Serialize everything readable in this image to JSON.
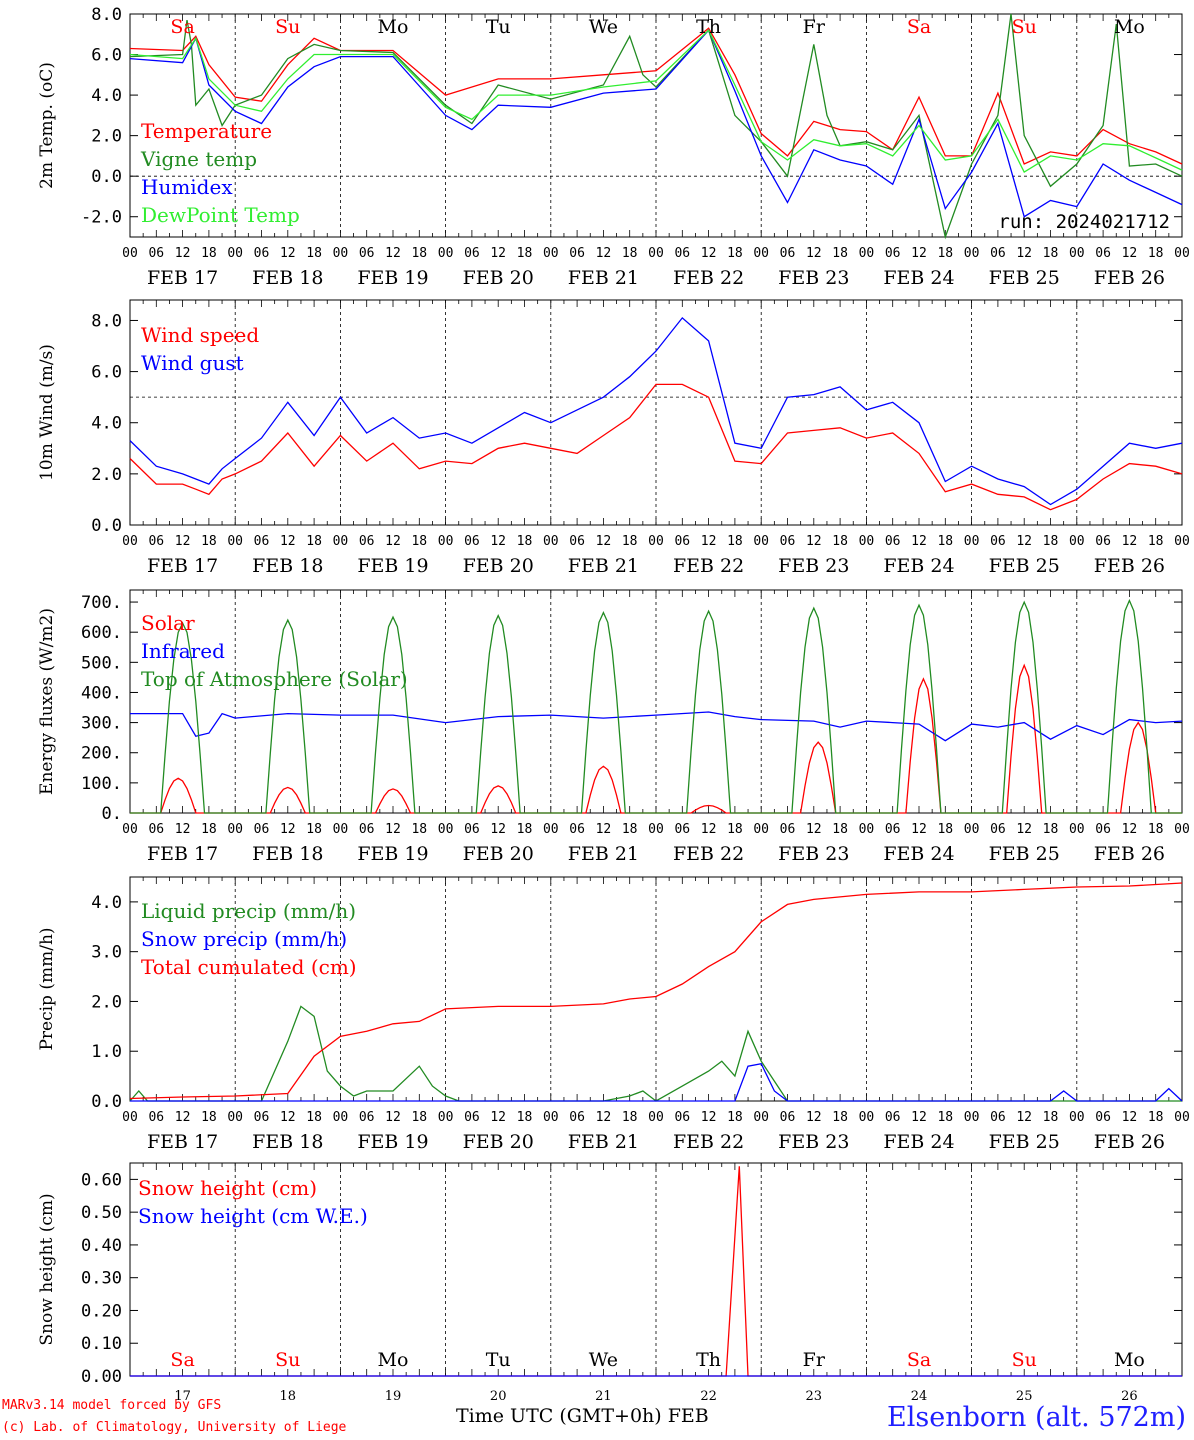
{
  "meta": {
    "model": "MARv3.14 model forced by GFS",
    "credit": "(c) Lab. of Climatology, University of Liege",
    "xaxis_title": "Time UTC (GMT+0h)",
    "month": "FEB",
    "station": "Elsenborn (alt. 572m)",
    "run": "run: 2024021712"
  },
  "days": {
    "dates": [
      "FEB 17",
      "FEB 18",
      "FEB 19",
      "FEB 20",
      "FEB 21",
      "FEB 22",
      "FEB 23",
      "FEB 24",
      "FEB 25",
      "FEB 26"
    ],
    "day_numbers": [
      "17",
      "18",
      "19",
      "20",
      "21",
      "22",
      "23",
      "24",
      "25",
      "26"
    ],
    "weekdays": [
      "Sa",
      "Su",
      "Mo",
      "Tu",
      "We",
      "Th",
      "Fr",
      "Sa",
      "Su",
      "Mo"
    ],
    "weekday_colors": [
      "#ff0000",
      "#ff0000",
      "#000000",
      "#000000",
      "#000000",
      "#000000",
      "#000000",
      "#ff0000",
      "#ff0000",
      "#000000"
    ],
    "hour_ticks": [
      "00",
      "06",
      "12",
      "18"
    ],
    "final_hour": "00"
  },
  "chart_data": [
    {
      "type": "line",
      "ylabel": "2m Temp. (oC)",
      "ylim": [
        -3.0,
        8.0
      ],
      "yticks": [
        "8.0",
        "6.0",
        "4.0",
        "2.0",
        "0.0",
        "-2.0"
      ],
      "ytick_values": [
        8,
        6,
        4,
        2,
        0,
        -2
      ],
      "reference_line": 0,
      "x_unit": "hours since FEB 17 00 UTC",
      "series": [
        {
          "name": "Temperature",
          "color": "#ff0000",
          "x": [
            0,
            12,
            15,
            18,
            24,
            30,
            36,
            42,
            48,
            60,
            72,
            84,
            96,
            108,
            120,
            132,
            138,
            144,
            150,
            156,
            162,
            168,
            174,
            180,
            186,
            192,
            198,
            204,
            210,
            216,
            222,
            228,
            234,
            240
          ],
          "y": [
            6.3,
            6.2,
            6.9,
            5.5,
            3.9,
            3.7,
            5.5,
            6.8,
            6.2,
            6.2,
            4.0,
            4.8,
            4.8,
            5.0,
            5.2,
            7.3,
            5.0,
            2.1,
            1.0,
            2.7,
            2.3,
            2.2,
            1.3,
            3.9,
            1.0,
            1.0,
            4.1,
            0.6,
            1.2,
            1.0,
            2.3,
            1.6,
            1.2,
            0.6
          ]
        },
        {
          "name": "Vigne temp",
          "color": "#228b22",
          "x": [
            0,
            12,
            13,
            14,
            15,
            18,
            21,
            24,
            30,
            36,
            42,
            48,
            60,
            72,
            78,
            84,
            96,
            108,
            114,
            117,
            120,
            132,
            138,
            144,
            150,
            156,
            159,
            162,
            168,
            174,
            180,
            186,
            192,
            198,
            201,
            204,
            210,
            216,
            222,
            225,
            228,
            234,
            240
          ],
          "y": [
            5.9,
            6.0,
            7.7,
            6.5,
            3.5,
            4.3,
            2.5,
            3.5,
            4.0,
            5.8,
            6.5,
            6.2,
            6.1,
            3.5,
            2.6,
            4.5,
            3.8,
            4.5,
            6.9,
            5.0,
            4.4,
            7.2,
            3.0,
            1.7,
            0.0,
            6.5,
            3.0,
            1.5,
            1.7,
            1.3,
            3.0,
            -3.0,
            0.6,
            3.0,
            8.0,
            2.0,
            -0.5,
            0.6,
            2.5,
            7.5,
            0.5,
            0.6,
            0.0
          ]
        },
        {
          "name": "Humidex",
          "color": "#0000ff",
          "x": [
            0,
            12,
            15,
            18,
            24,
            30,
            36,
            42,
            48,
            60,
            72,
            78,
            84,
            96,
            108,
            120,
            132,
            138,
            144,
            150,
            156,
            162,
            168,
            174,
            180,
            186,
            192,
            198,
            204,
            210,
            216,
            222,
            228,
            234,
            240
          ],
          "y": [
            5.8,
            5.6,
            6.8,
            4.5,
            3.2,
            2.6,
            4.4,
            5.4,
            5.9,
            5.9,
            3.0,
            2.3,
            3.5,
            3.4,
            4.1,
            4.3,
            7.2,
            4.2,
            1.0,
            -1.3,
            1.3,
            0.8,
            0.5,
            -0.4,
            2.8,
            -1.6,
            0.2,
            2.6,
            -2.0,
            -1.2,
            -1.5,
            0.6,
            -0.2,
            -0.8,
            -1.4
          ]
        },
        {
          "name": "DewPoint Temp",
          "color": "#30ee30",
          "x": [
            0,
            12,
            15,
            18,
            24,
            30,
            36,
            42,
            48,
            60,
            72,
            78,
            84,
            96,
            108,
            120,
            132,
            138,
            144,
            150,
            156,
            162,
            168,
            174,
            180,
            186,
            192,
            198,
            204,
            210,
            216,
            222,
            228,
            234,
            240
          ],
          "y": [
            6.0,
            5.8,
            6.8,
            4.8,
            3.5,
            3.2,
            4.8,
            6.0,
            6.0,
            6.0,
            3.4,
            2.8,
            4.0,
            4.0,
            4.4,
            4.7,
            7.2,
            4.5,
            1.7,
            0.8,
            1.8,
            1.5,
            1.6,
            1.0,
            2.5,
            0.8,
            1.0,
            2.8,
            0.2,
            1.0,
            0.8,
            1.6,
            1.5,
            0.9,
            0.3
          ]
        }
      ]
    },
    {
      "type": "line",
      "ylabel": "10m Wind (m/s)",
      "ylim": [
        0,
        8.8
      ],
      "yticks": [
        "8.0",
        "6.0",
        "4.0",
        "2.0",
        "0.0"
      ],
      "ytick_values": [
        8,
        6,
        4,
        2,
        0
      ],
      "reference_line": 5,
      "x_unit": "hours since FEB 17 00 UTC",
      "series": [
        {
          "name": "Wind speed",
          "color": "#ff0000",
          "x": [
            0,
            6,
            12,
            15,
            18,
            21,
            24,
            30,
            36,
            42,
            48,
            54,
            60,
            66,
            72,
            78,
            84,
            90,
            96,
            102,
            108,
            114,
            120,
            126,
            132,
            138,
            144,
            150,
            156,
            162,
            168,
            174,
            180,
            186,
            192,
            198,
            204,
            210,
            216,
            222,
            228,
            234,
            240
          ],
          "y": [
            2.6,
            1.6,
            1.6,
            1.4,
            1.2,
            1.8,
            2.0,
            2.5,
            3.6,
            2.3,
            3.5,
            2.5,
            3.2,
            2.2,
            2.5,
            2.4,
            3.0,
            3.2,
            3.0,
            2.8,
            3.5,
            4.2,
            5.5,
            5.5,
            5.0,
            2.5,
            2.4,
            3.6,
            3.7,
            3.8,
            3.4,
            3.6,
            2.8,
            1.3,
            1.6,
            1.2,
            1.1,
            0.6,
            1.0,
            1.8,
            2.4,
            2.3,
            2.0
          ]
        },
        {
          "name": "Wind gust",
          "color": "#0000ff",
          "x": [
            0,
            6,
            12,
            15,
            18,
            21,
            24,
            30,
            36,
            42,
            48,
            54,
            60,
            66,
            72,
            78,
            84,
            90,
            96,
            102,
            108,
            114,
            120,
            126,
            132,
            138,
            144,
            150,
            156,
            162,
            168,
            174,
            180,
            186,
            192,
            198,
            204,
            210,
            216,
            222,
            228,
            234,
            240
          ],
          "y": [
            3.3,
            2.3,
            2.0,
            1.8,
            1.6,
            2.2,
            2.6,
            3.4,
            4.8,
            3.5,
            5.0,
            3.6,
            4.2,
            3.4,
            3.6,
            3.2,
            3.8,
            4.4,
            4.0,
            4.5,
            5.0,
            5.8,
            6.8,
            8.1,
            7.2,
            3.2,
            3.0,
            5.0,
            5.1,
            5.4,
            4.5,
            4.8,
            4.0,
            1.7,
            2.3,
            1.8,
            1.5,
            0.8,
            1.4,
            2.3,
            3.2,
            3.0,
            3.2
          ]
        }
      ]
    },
    {
      "type": "line",
      "ylabel": "Energy fluxes (W/m2)",
      "ylim": [
        0,
        740
      ],
      "yticks": [
        "700.",
        "600.",
        "500.",
        "400.",
        "300.",
        "200.",
        "100.",
        "0."
      ],
      "ytick_values": [
        700,
        600,
        500,
        400,
        300,
        200,
        100,
        0
      ],
      "x_unit": "hours since FEB 17 00 UTC",
      "series": [
        {
          "name": "Solar",
          "color": "#ff0000",
          "day_peaks": [
            115,
            85,
            80,
            90,
            155,
            25,
            235,
            445,
            490,
            300
          ],
          "peak_hours": [
            11,
            12,
            12,
            12,
            12,
            12,
            13,
            13,
            12,
            14
          ],
          "notes": "daily solar curve from ~07h to ~17h UTC"
        },
        {
          "name": "Infrared",
          "color": "#0000ff",
          "x": [
            0,
            12,
            15,
            18,
            21,
            24,
            36,
            48,
            60,
            72,
            84,
            96,
            108,
            120,
            132,
            138,
            144,
            156,
            162,
            168,
            174,
            180,
            186,
            192,
            198,
            204,
            210,
            216,
            222,
            228,
            234,
            240
          ],
          "y": [
            330,
            330,
            255,
            265,
            330,
            315,
            330,
            325,
            325,
            300,
            320,
            325,
            315,
            325,
            335,
            320,
            310,
            305,
            285,
            305,
            300,
            295,
            240,
            295,
            285,
            300,
            245,
            290,
            260,
            310,
            300,
            305
          ]
        },
        {
          "name": "Top of Atmosphere (Solar)",
          "color": "#228b22",
          "day_peaks": [
            630,
            640,
            650,
            655,
            665,
            670,
            680,
            690,
            700,
            705
          ],
          "notes": "daily bell curve from ~07h to ~17h UTC"
        }
      ]
    },
    {
      "type": "line",
      "ylabel": "Precip (mm/h)",
      "ylim": [
        0,
        4.5
      ],
      "yticks": [
        "4.0",
        "3.0",
        "2.0",
        "1.0",
        "0.0"
      ],
      "ytick_values": [
        4,
        3,
        2,
        1,
        0
      ],
      "x_unit": "hours since FEB 17 00 UTC",
      "series": [
        {
          "name": "Liquid precip (mm/h)",
          "color": "#228b22",
          "x": [
            0,
            2,
            4,
            6,
            12,
            18,
            30,
            36,
            39,
            42,
            45,
            48,
            51,
            54,
            60,
            66,
            69,
            72,
            75,
            78,
            84,
            96,
            108,
            114,
            117,
            120,
            126,
            132,
            135,
            138,
            141,
            144,
            150,
            156,
            168,
            180,
            192,
            204,
            216,
            228,
            240
          ],
          "y": [
            0,
            0.2,
            0,
            0,
            0,
            0,
            0,
            1.2,
            1.9,
            1.7,
            0.6,
            0.3,
            0.1,
            0.2,
            0.2,
            0.7,
            0.3,
            0.1,
            0,
            0,
            0,
            0,
            0,
            0.1,
            0.2,
            0,
            0.3,
            0.6,
            0.8,
            0.5,
            1.4,
            0.8,
            0,
            0,
            0,
            0,
            0,
            0,
            0,
            0,
            0
          ]
        },
        {
          "name": "Snow precip (mm/h)",
          "color": "#0000ff",
          "x": [
            0,
            120,
            138,
            141,
            144,
            147,
            150,
            156,
            168,
            180,
            192,
            204,
            210,
            213,
            216,
            228,
            234,
            237,
            240
          ],
          "y": [
            0,
            0,
            0,
            0.7,
            0.75,
            0.2,
            0,
            0,
            0,
            0,
            0,
            0,
            0,
            0.2,
            0,
            0,
            0,
            0.25,
            0
          ]
        },
        {
          "name": "Total cumulated (cm)",
          "color": "#ff0000",
          "x": [
            0,
            12,
            24,
            36,
            42,
            48,
            54,
            60,
            66,
            72,
            84,
            96,
            108,
            114,
            120,
            126,
            132,
            138,
            144,
            150,
            156,
            168,
            180,
            192,
            204,
            216,
            228,
            240
          ],
          "y": [
            0.05,
            0.08,
            0.1,
            0.15,
            0.9,
            1.3,
            1.4,
            1.55,
            1.6,
            1.85,
            1.9,
            1.9,
            1.95,
            2.05,
            2.1,
            2.35,
            2.7,
            3.0,
            3.6,
            3.95,
            4.05,
            4.15,
            4.2,
            4.2,
            4.25,
            4.3,
            4.32,
            4.38
          ]
        }
      ]
    },
    {
      "type": "line",
      "ylabel": "Snow height (cm)",
      "ylim": [
        0,
        0.65
      ],
      "yticks": [
        "0.60",
        "0.50",
        "0.40",
        "0.30",
        "0.20",
        "0.10",
        "0.00"
      ],
      "ytick_values": [
        0.6,
        0.5,
        0.4,
        0.3,
        0.2,
        0.1,
        0.0
      ],
      "x_unit": "hours since FEB 17 00 UTC",
      "series": [
        {
          "name": "Snow height (cm)",
          "color": "#ff0000",
          "x": [
            0,
            136,
            139,
            141,
            240
          ],
          "y": [
            0,
            0,
            0.64,
            0,
            0
          ]
        },
        {
          "name": "Snow height (cm W.E.)",
          "color": "#0000ff",
          "x": [
            0,
            240
          ],
          "y": [
            0,
            0
          ]
        }
      ]
    }
  ]
}
